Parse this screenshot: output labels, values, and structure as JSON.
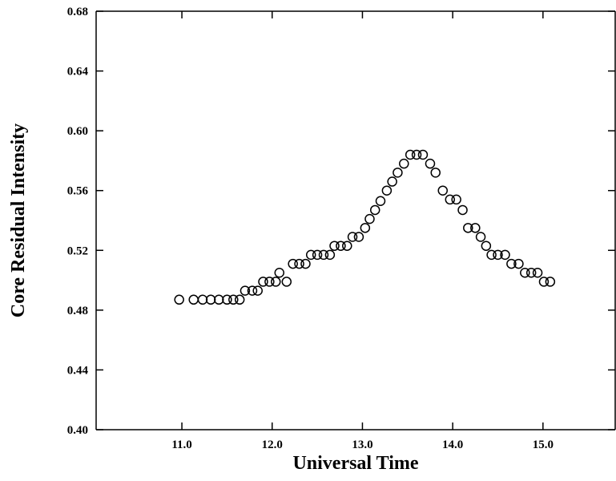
{
  "chart_data": {
    "type": "scatter",
    "x_label": "Universal Time",
    "y_label": "Core Residual Intensity",
    "xlim": [
      10.05,
      15.8
    ],
    "ylim": [
      0.4,
      0.68
    ],
    "xticks": [
      {
        "value": 11,
        "label": "11.0"
      },
      {
        "value": 12,
        "label": "12.0"
      },
      {
        "value": 13,
        "label": "13.0"
      },
      {
        "value": 14,
        "label": "14.0"
      },
      {
        "value": 15,
        "label": "15.0"
      }
    ],
    "yticks": [
      {
        "value": 0.4,
        "label": "0.40"
      },
      0.44,
      0.48,
      0.52,
      0.56,
      {
        "value": 0.6,
        "label": "0.60"
      },
      0.64,
      0.68
    ],
    "color": "#000000",
    "x": [
      10.97,
      11.13,
      11.23,
      11.32,
      11.41,
      11.5,
      11.57,
      11.64,
      11.7,
      11.78,
      11.84,
      11.9,
      11.97,
      12.04,
      12.08,
      12.16,
      12.23,
      12.3,
      12.37,
      12.43,
      12.5,
      12.57,
      12.64,
      12.69,
      12.76,
      12.83,
      12.89,
      12.96,
      13.03,
      13.08,
      13.14,
      13.2,
      13.27,
      13.33,
      13.39,
      13.46,
      13.53,
      13.6,
      13.67,
      13.75,
      13.81,
      13.89,
      13.97,
      14.04,
      14.11,
      14.17,
      14.25,
      14.31,
      14.37,
      14.43,
      14.5,
      14.58,
      14.65,
      14.73,
      14.8,
      14.87,
      14.94,
      15.01,
      15.08
    ],
    "values": [
      0.487,
      0.487,
      0.487,
      0.487,
      0.487,
      0.487,
      0.487,
      0.487,
      0.493,
      0.493,
      0.493,
      0.499,
      0.499,
      0.499,
      0.505,
      0.499,
      0.511,
      0.511,
      0.511,
      0.517,
      0.517,
      0.517,
      0.517,
      0.523,
      0.523,
      0.523,
      0.529,
      0.529,
      0.535,
      0.541,
      0.547,
      0.553,
      0.56,
      0.566,
      0.572,
      0.578,
      0.584,
      0.584,
      0.584,
      0.578,
      0.572,
      0.56,
      0.554,
      0.554,
      0.547,
      0.535,
      0.535,
      0.529,
      0.523,
      0.517,
      0.517,
      0.517,
      0.511,
      0.511,
      0.505,
      0.505,
      0.505,
      0.499,
      0.499
    ]
  }
}
